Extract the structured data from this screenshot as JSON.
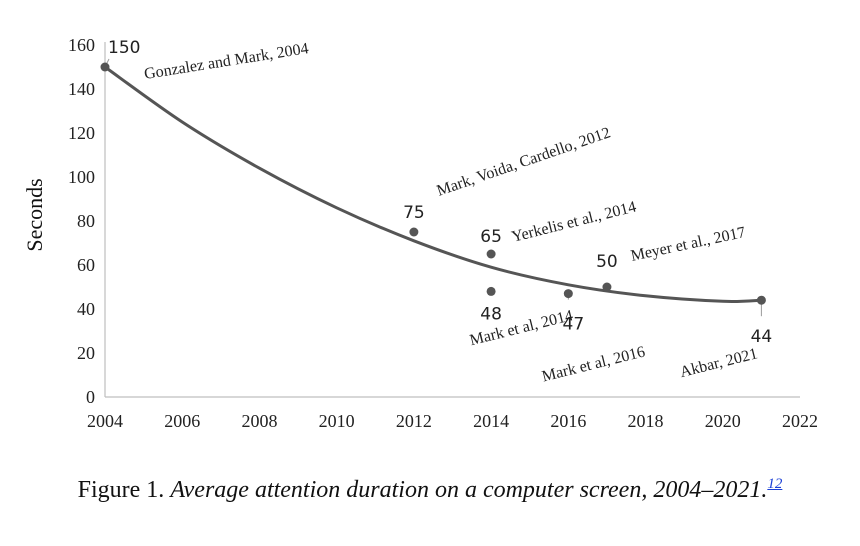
{
  "chart_data": {
    "type": "scatter",
    "ylabel": "Seconds",
    "xlabel": "",
    "xlim": [
      2004,
      2022
    ],
    "ylim": [
      0,
      160
    ],
    "x_ticks": [
      2004,
      2006,
      2008,
      2010,
      2012,
      2014,
      2016,
      2018,
      2020,
      2022
    ],
    "y_ticks": [
      0,
      20,
      40,
      60,
      80,
      100,
      120,
      140,
      160
    ],
    "grid": false,
    "trendline": {
      "type": "polynomial",
      "points": [
        [
          2004,
          150
        ],
        [
          2006,
          125
        ],
        [
          2008,
          104
        ],
        [
          2010,
          86
        ],
        [
          2012,
          71
        ],
        [
          2014,
          59
        ],
        [
          2016,
          51
        ],
        [
          2018,
          46
        ],
        [
          2020,
          43.5
        ],
        [
          2021,
          44
        ]
      ]
    },
    "points": [
      {
        "x": 2004,
        "y": 150,
        "value_label": "150",
        "annotation": "Gonzalez and Mark, 2004"
      },
      {
        "x": 2012,
        "y": 75,
        "value_label": "75",
        "annotation": "Mark, Voida, Cardello, 2012"
      },
      {
        "x": 2014,
        "y": 65,
        "value_label": "65",
        "annotation": "Yerkelis et al., 2014"
      },
      {
        "x": 2014,
        "y": 48,
        "value_label": "48",
        "annotation": "Mark et al, 2014"
      },
      {
        "x": 2016,
        "y": 47,
        "value_label": "47",
        "annotation": "Mark et al, 2016"
      },
      {
        "x": 2017,
        "y": 50,
        "value_label": "50",
        "annotation": "Meyer et al., 2017"
      },
      {
        "x": 2021,
        "y": 44,
        "value_label": "44",
        "annotation": "Akbar, 2021"
      }
    ]
  },
  "caption": {
    "lead": "Figure 1. ",
    "title": "Average attention duration on a computer screen, 2004–2021.",
    "reference": "12"
  },
  "colors": {
    "marker": "#555555",
    "trendline": "#555555",
    "axis": "#bfbfbf",
    "text": "#222222",
    "link": "#1a3fd6"
  }
}
